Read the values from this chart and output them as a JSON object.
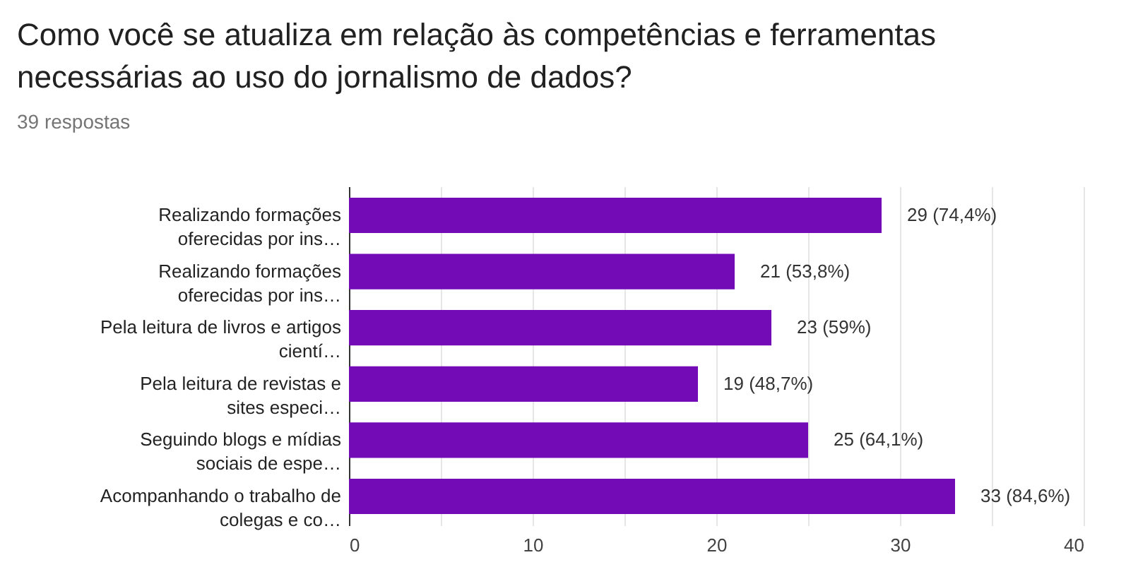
{
  "chart_data": {
    "type": "bar",
    "orientation": "horizontal",
    "title": "Como você se atualiza em relação às competências e ferramentas necessárias ao uso do jornalismo de dados?",
    "subtitle": "39 respostas",
    "categories": [
      "Realizando formações oferecidas por ins…",
      "Realizando formações oferecidas por ins…",
      "Pela leitura de livros e artigos cientí…",
      "Pela leitura de revistas e sites especi…",
      "Seguindo blogs e mídias sociais de espe…",
      "Acompanhando o trabalho de colegas e co…"
    ],
    "values": [
      29,
      21,
      23,
      19,
      25,
      33
    ],
    "value_labels": [
      "29 (74,4%)",
      "21 (53,8%)",
      "23 (59%)",
      "19 (48,7%)",
      "25 (64,1%)",
      "33 (84,6%)"
    ],
    "color": "#730bb6",
    "xlim": [
      0,
      40
    ],
    "xticks": [
      0,
      {
        "value": 5,
        "label": null
      },
      10,
      {
        "value": 15,
        "label": null
      },
      20,
      {
        "value": 25,
        "label": null
      },
      30,
      {
        "value": 35,
        "label": null
      },
      40
    ],
    "grid": "x"
  }
}
